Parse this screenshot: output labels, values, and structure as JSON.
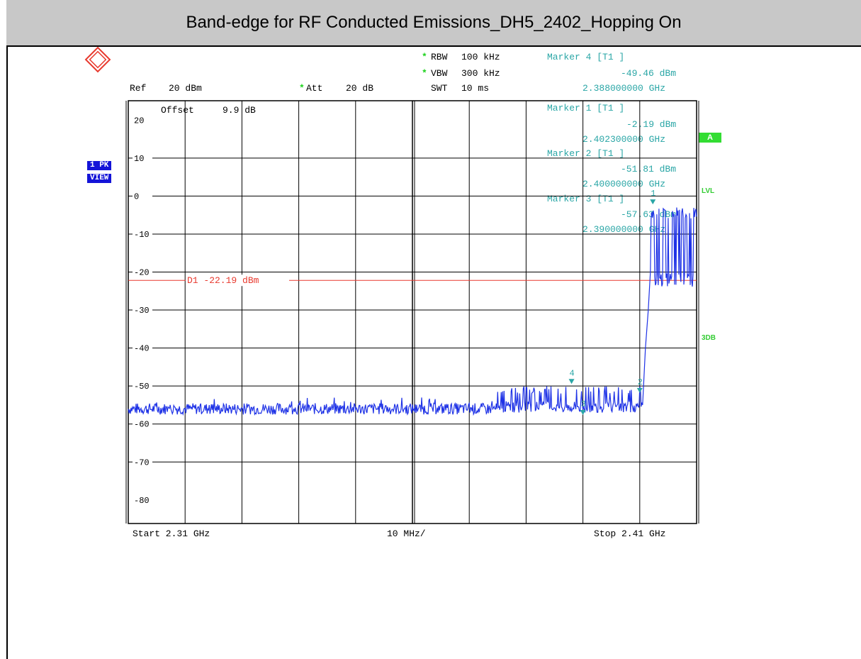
{
  "title": "Band-edge for RF Conducted Emissions_DH5_2402_Hopping On",
  "header": {
    "rbw_label": "RBW",
    "rbw_value": "100 kHz",
    "vbw_label": "VBW",
    "vbw_value": "300 kHz",
    "swt_label": "SWT",
    "swt_value": "10 ms",
    "ref_label": "Ref",
    "ref_value": "20 dBm",
    "att_label": "Att",
    "att_value": "20 dB",
    "offset_label": "Offset",
    "offset_value": "9.9 dB",
    "star": "*"
  },
  "markers": [
    {
      "title": "Marker 4 [T1 ]",
      "level": "-49.46 dBm",
      "freq": "2.388000000 GHz"
    },
    {
      "title": "Marker 1 [T1 ]",
      "level": "-2.19 dBm",
      "freq": "2.402300000 GHz"
    },
    {
      "title": "Marker 2 [T1 ]",
      "level": "-51.81 dBm",
      "freq": "2.400000000 GHz"
    },
    {
      "title": "Marker 3 [T1 ]",
      "level": "-57.63 dBm",
      "freq": "2.390000000 GHz"
    }
  ],
  "side": {
    "trace_mode_1": "1 PK",
    "trace_mode_2": "VIEW",
    "a_box": "A",
    "lvl": "LVL",
    "three_db": "3DB"
  },
  "colors": {
    "trace": "#1e32e6",
    "marker": "#2aa6a6",
    "display_line": "#e8392e",
    "grid": "#000000",
    "title_bg": "#c8c8c8"
  },
  "footer": {
    "start": "Start 2.31 GHz",
    "span": "10 MHz/",
    "stop": "Stop 2.41 GHz"
  },
  "chart_data": {
    "type": "line",
    "title": "Band-edge for RF Conducted Emissions_DH5_2402_Hopping On",
    "xlabel": "",
    "ylabel": "",
    "xlim": [
      2.31,
      2.41
    ],
    "x_unit": "GHz",
    "ylim": [
      -90,
      20
    ],
    "y_unit": "dBm",
    "y_ticks": [
      "20",
      "10",
      "0",
      "-10",
      "-20",
      "-30",
      "-40",
      "-50",
      "-60",
      "-70",
      "-80"
    ],
    "y_tick_values": [
      20,
      10,
      0,
      -10,
      -20,
      -30,
      -40,
      -50,
      -60,
      -70,
      -80
    ],
    "grid": true,
    "display_line": {
      "label": "D1 -22.19 dBm",
      "value": -22.19
    },
    "marker_points": [
      {
        "id": "1",
        "x": 2.4023,
        "y": -2.19
      },
      {
        "id": "2",
        "x": 2.4,
        "y": -51.81
      },
      {
        "id": "3",
        "x": 2.39,
        "y": -57.63
      },
      {
        "id": "4",
        "x": 2.388,
        "y": -49.46
      }
    ],
    "series": [
      {
        "x": [
          2.31,
          2.32,
          2.33,
          2.34,
          2.35,
          2.36,
          2.37,
          2.375,
          2.378,
          2.38,
          2.382,
          2.384,
          2.386,
          2.388,
          2.39,
          2.392,
          2.394,
          2.396,
          2.398,
          2.4,
          2.4005,
          2.401,
          2.4015,
          2.4018,
          2.402,
          2.4023,
          2.403,
          2.404,
          2.405,
          2.406,
          2.407,
          2.408,
          2.409,
          2.41
        ],
        "values": [
          -56,
          -56,
          -56,
          -56,
          -56,
          -56,
          -56,
          -56,
          -50,
          -55,
          -50,
          -54,
          -50,
          -49.5,
          -57.6,
          -51,
          -55,
          -50,
          -55,
          -51.8,
          -55,
          -40,
          -30,
          -22,
          -15,
          -2.2,
          -20,
          -4,
          -22,
          -4,
          -20,
          -3,
          -22,
          -5
        ]
      }
    ]
  }
}
